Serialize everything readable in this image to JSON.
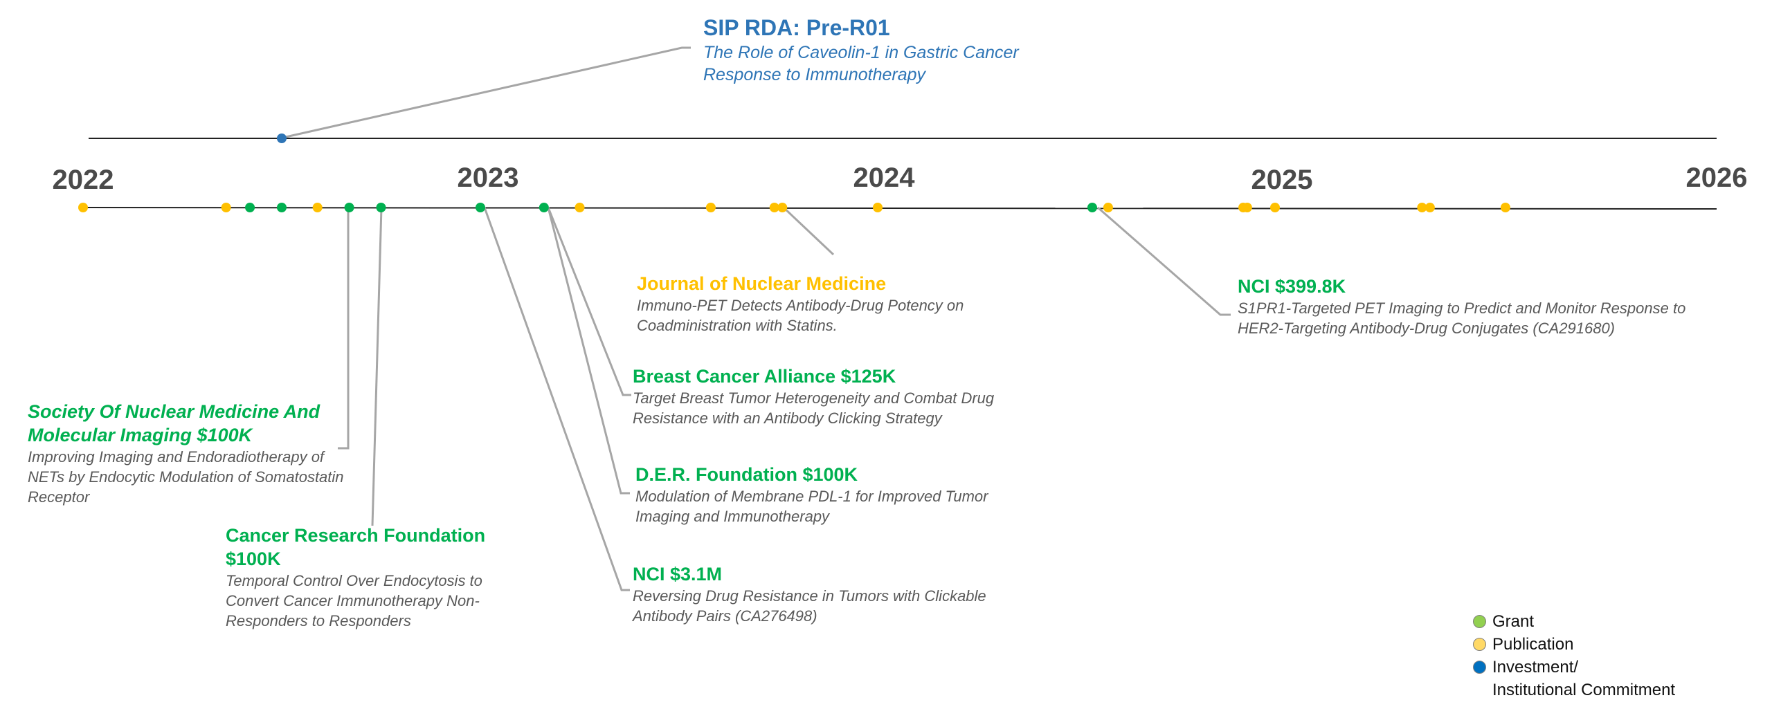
{
  "colors": {
    "grant": "#00b050",
    "publication": "#ffc000",
    "investment": "#2e75b6",
    "line": "#222222",
    "leader": "#a6a6a6"
  },
  "years": [
    "2022",
    "2023",
    "2024",
    "2025",
    "2026"
  ],
  "investment": {
    "title": "SIP RDA: Pre-R01",
    "desc": "The Role of Caveolin-1 in Gastric Cancer Response to Immunotherapy",
    "date": 2022.5
  },
  "events": [
    {
      "type": "publication",
      "date": 2022.0
    },
    {
      "type": "publication",
      "date": 2022.36
    },
    {
      "type": "grant",
      "date": 2022.42
    },
    {
      "type": "grant",
      "date": 2022.5
    },
    {
      "type": "publication",
      "date": 2022.59
    },
    {
      "type": "grant",
      "date": 2022.67
    },
    {
      "type": "grant",
      "date": 2022.75
    },
    {
      "type": "grant",
      "date": 2023.0
    },
    {
      "type": "grant",
      "date": 2023.16
    },
    {
      "type": "publication",
      "date": 2023.25
    },
    {
      "type": "publication",
      "date": 2023.58
    },
    {
      "type": "publication",
      "date": 2023.74
    },
    {
      "type": "publication",
      "date": 2023.76
    },
    {
      "type": "publication",
      "date": 2024.0
    },
    {
      "type": "grant",
      "date": 2024.54
    },
    {
      "type": "publication",
      "date": 2024.58
    },
    {
      "type": "publication",
      "date": 2024.92
    },
    {
      "type": "publication",
      "date": 2024.93
    },
    {
      "type": "publication",
      "date": 2025.0
    },
    {
      "type": "publication",
      "date": 2025.37
    },
    {
      "type": "publication",
      "date": 2025.39
    },
    {
      "type": "publication",
      "date": 2025.58
    }
  ],
  "annotations": {
    "snmmi": {
      "title": "Society Of Nuclear Medicine And Molecular Imaging $100K",
      "desc": "Improving Imaging and Endoradiotherapy of NETs by Endocytic Modulation of Somatostatin Receptor"
    },
    "crf": {
      "title": "Cancer Research Foundation $100K",
      "desc": "Temporal Control Over Endocytosis to Convert Cancer Immunotherapy Non-Responders to Responders"
    },
    "nci31": {
      "title": "NCI $3.1M",
      "desc": "Reversing Drug Resistance in Tumors with Clickable Antibody Pairs (CA276498)"
    },
    "der": {
      "title": "D.E.R. Foundation $100K",
      "desc": "Modulation of Membrane PDL-1 for Improved Tumor Imaging and Immunotherapy"
    },
    "bca": {
      "title": "Breast Cancer Alliance $125K",
      "desc": "Target Breast Tumor Heterogeneity and Combat Drug Resistance with an Antibody Clicking Strategy"
    },
    "jnm": {
      "title": "Journal of Nuclear Medicine",
      "desc": "Immuno-PET Detects Antibody-Drug Potency on Coadministration with Statins."
    },
    "nci399": {
      "title": "NCI $399.8K",
      "desc": "S1PR1-Targeted PET Imaging to Predict and Monitor Response to HER2-Targeting Antibody-Drug Conjugates (CA291680)"
    }
  },
  "legend": {
    "grant": "Grant",
    "publication": "Publication",
    "investment_line1": "Investment/",
    "investment_line2": "Institutional Commitment"
  }
}
